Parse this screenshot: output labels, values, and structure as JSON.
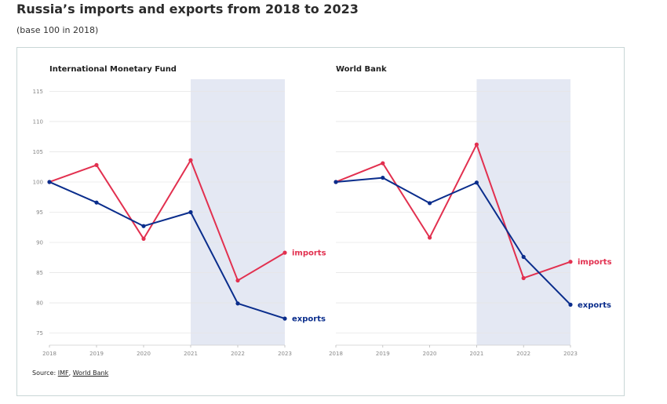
{
  "title": "Russia’s imports and exports from 2018 to 2023",
  "subtitle": "(base 100 in 2018)",
  "source": {
    "prefix": "Source:",
    "links": [
      "IMF",
      "World Bank"
    ],
    "separator": ","
  },
  "colors": {
    "imports": "#e2304f",
    "exports": "#0a2d8c",
    "shade": "#e4e8f3",
    "grid": "#e6e6e6"
  },
  "chart_data": [
    {
      "type": "line",
      "title": "International Monetary Fund",
      "x": [
        "2018",
        "2019",
        "2020",
        "2021",
        "2022",
        "2023"
      ],
      "ylim": [
        73,
        117
      ],
      "yticks": [
        75,
        80,
        85,
        90,
        95,
        100,
        105,
        110,
        115
      ],
      "shaded_range": [
        "2021",
        "2023"
      ],
      "series": [
        {
          "name": "imports",
          "values": [
            100,
            102.8,
            90.6,
            103.6,
            83.7,
            88.3
          ]
        },
        {
          "name": "exports",
          "values": [
            100,
            96.6,
            92.7,
            95.0,
            79.9,
            77.4
          ]
        }
      ]
    },
    {
      "type": "line",
      "title": "World Bank",
      "x": [
        "2018",
        "2019",
        "2020",
        "2021",
        "2022",
        "2023"
      ],
      "ylim": [
        73,
        117
      ],
      "yticks": [
        75,
        80,
        85,
        90,
        95,
        100,
        105,
        110,
        115
      ],
      "shaded_range": [
        "2021",
        "2023"
      ],
      "series": [
        {
          "name": "imports",
          "values": [
            100,
            103.1,
            90.8,
            106.2,
            84.1,
            86.8
          ]
        },
        {
          "name": "exports",
          "values": [
            100,
            100.7,
            96.5,
            99.9,
            87.6,
            79.7
          ]
        }
      ]
    }
  ]
}
